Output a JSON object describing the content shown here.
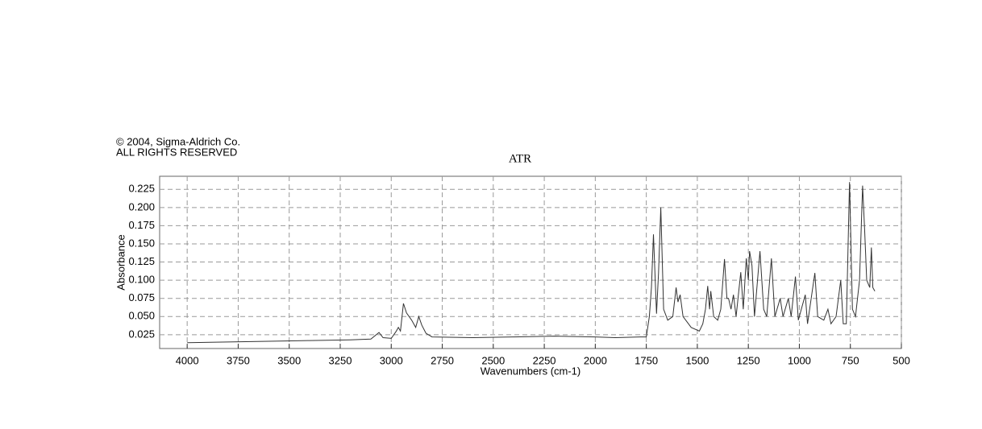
{
  "chart_data": {
    "type": "line",
    "copyright": [
      "© 2004, Sigma-Aldrich Co.",
      "ALL RIGHTS RESERVED"
    ],
    "title": "ATR",
    "x_label": "Wavenumbers (cm-1)",
    "y_label": "Absorbance",
    "xlim": [
      4135,
      500
    ],
    "ylim": [
      0.006,
      0.243
    ],
    "xticks": [
      4000,
      3750,
      3500,
      3250,
      3000,
      2750,
      2500,
      2250,
      2000,
      1750,
      1500,
      1250,
      1000,
      750,
      500
    ],
    "yticks": [
      0.025,
      {
        "value": 0.05,
        "label": "0.050"
      },
      0.075,
      {
        "value": 0.1,
        "label": "0.100"
      },
      0.125,
      {
        "value": 0.15,
        "label": "0.150"
      },
      0.175,
      {
        "value": 0.2,
        "label": "0.200"
      },
      0.225
    ],
    "grid": true,
    "series": [
      {
        "color": "#333333",
        "x": [
          4000,
          3800,
          3600,
          3400,
          3200,
          3100,
          3060,
          3040,
          3000,
          2975,
          2965,
          2955,
          2940,
          2925,
          2900,
          2880,
          2865,
          2850,
          2830,
          2800,
          2600,
          2400,
          2200,
          2000,
          1900,
          1780,
          1750,
          1735,
          1725,
          1715,
          1700,
          1690,
          1679,
          1665,
          1645,
          1620,
          1604,
          1595,
          1584,
          1570,
          1530,
          1490,
          1473,
          1460,
          1449,
          1440,
          1434,
          1420,
          1400,
          1385,
          1367,
          1355,
          1347,
          1335,
          1323,
          1310,
          1287,
          1275,
          1260,
          1250,
          1244,
          1232,
          1220,
          1193,
          1175,
          1160,
          1137,
          1120,
          1094,
          1080,
          1054,
          1040,
          1019,
          1005,
          971,
          960,
          924,
          910,
          880,
          860,
          845,
          820,
          797,
          785,
          770,
          754,
          740,
          725,
          705,
          690,
          680,
          670,
          655,
          647,
          640,
          630
        ],
        "values": [
          0.014,
          0.015,
          0.016,
          0.017,
          0.018,
          0.019,
          0.028,
          0.021,
          0.02,
          0.03,
          0.035,
          0.03,
          0.068,
          0.055,
          0.045,
          0.035,
          0.05,
          0.038,
          0.027,
          0.022,
          0.021,
          0.022,
          0.023,
          0.022,
          0.021,
          0.022,
          0.022,
          0.05,
          0.09,
          0.163,
          0.054,
          0.11,
          0.2,
          0.06,
          0.045,
          0.05,
          0.09,
          0.07,
          0.08,
          0.05,
          0.035,
          0.03,
          0.04,
          0.06,
          0.092,
          0.06,
          0.085,
          0.05,
          0.045,
          0.06,
          0.129,
          0.075,
          0.075,
          0.06,
          0.08,
          0.05,
          0.111,
          0.06,
          0.13,
          0.1,
          0.14,
          0.12,
          0.05,
          0.14,
          0.06,
          0.05,
          0.13,
          0.05,
          0.075,
          0.05,
          0.075,
          0.05,
          0.105,
          0.045,
          0.08,
          0.04,
          0.11,
          0.05,
          0.045,
          0.06,
          0.04,
          0.05,
          0.1,
          0.04,
          0.04,
          0.235,
          0.06,
          0.05,
          0.1,
          0.23,
          0.17,
          0.1,
          0.09,
          0.145,
          0.09,
          0.085
        ]
      }
    ]
  }
}
